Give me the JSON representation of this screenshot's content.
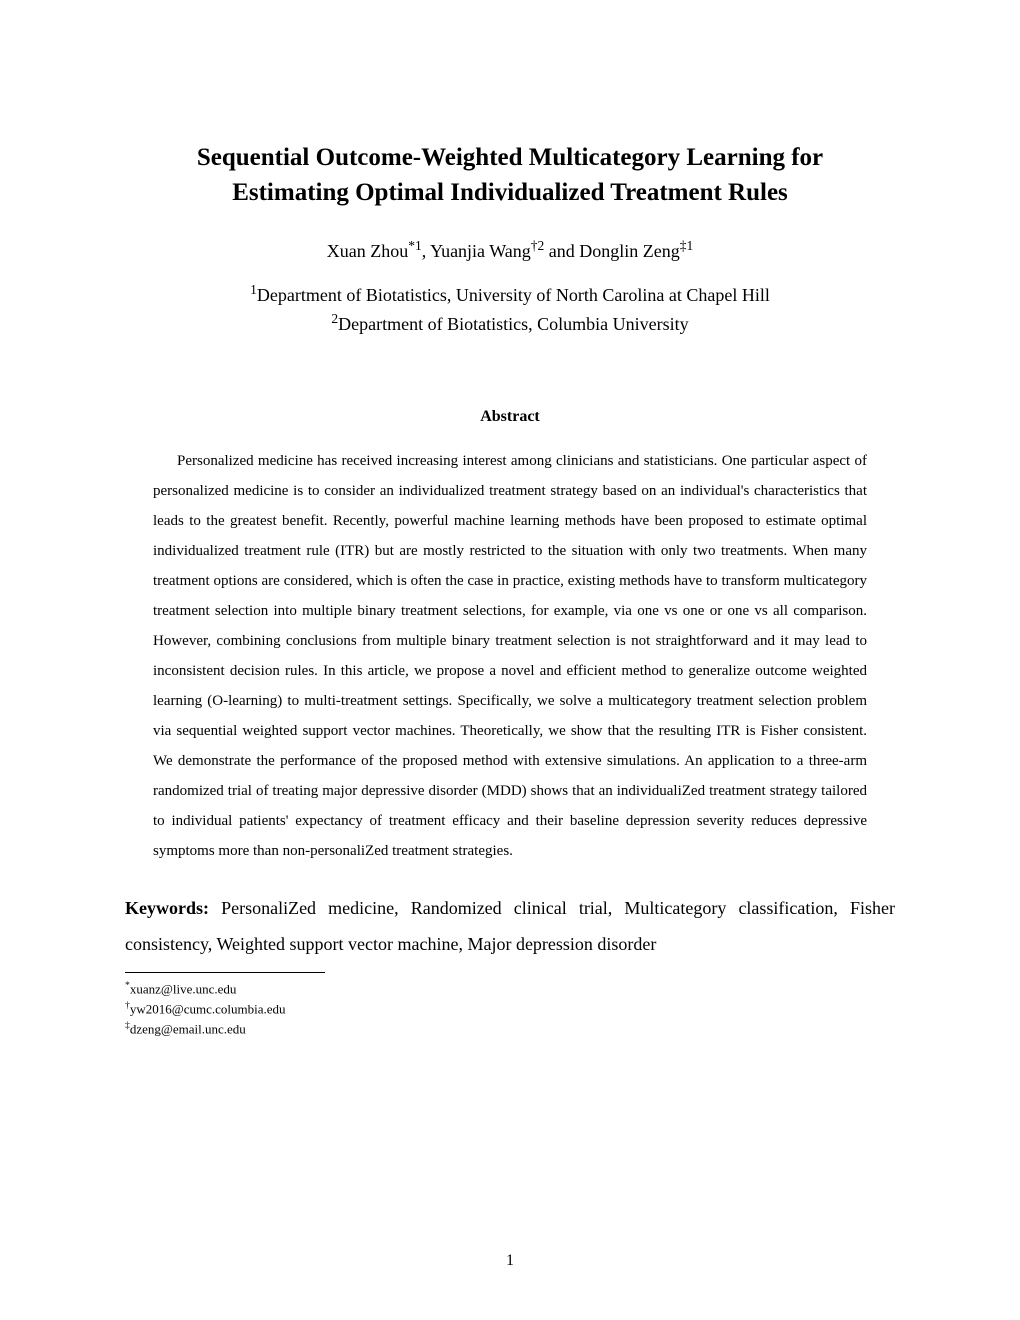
{
  "title": {
    "line1": "Sequential Outcome-Weighted Multicategory Learning for",
    "line2": "Estimating Optimal Individualized Treatment Rules"
  },
  "authors": {
    "a1": {
      "name": "Xuan Zhou",
      "mark": "*1"
    },
    "a2": {
      "name": "Yuanjia Wang",
      "mark": "†2"
    },
    "a3": {
      "name": "Donglin Zeng",
      "mark": "‡1"
    },
    "sep1": ", ",
    "sep2": " and "
  },
  "affiliations": {
    "aff1_num": "1",
    "aff1_text": "Department of Biotatistics, University of North Carolina at Chapel Hill",
    "aff2_num": "2",
    "aff2_text": "Department of Biotatistics, Columbia University"
  },
  "abstract": {
    "heading": "Abstract",
    "body": "Personalized medicine has received increasing interest among clinicians and statisticians. One particular aspect of personalized medicine is to consider an individualized treatment strategy based on an individual's characteristics that leads to the greatest benefit. Recently, powerful machine learning methods have been proposed to estimate optimal individualized treatment rule (ITR) but are mostly restricted to the situation with only two treatments. When many treatment options are considered, which is often the case in practice, existing methods have to transform multicategory treatment selection into multiple binary treatment selections, for example, via one vs one or one vs all comparison. However, combining conclusions from multiple binary treatment selection is not straightforward and it may lead to inconsistent decision rules. In this article, we propose a novel and efficient method to generalize outcome weighted learning (O-learning) to multi-treatment settings. Specifically, we solve a multicategory treatment selection problem via sequential weighted support vector machines. Theoretically, we show that the resulting ITR is Fisher consistent. We demonstrate the performance of the proposed method with extensive simulations. An application to a three-arm randomized trial of treating major depressive disorder (MDD) shows that an individualiZed treatment strategy tailored to individual patients' expectancy of treatment efficacy and their baseline depression severity reduces depressive symptoms more than non-personaliZed treatment strategies."
  },
  "keywords": {
    "label": "Keywords:",
    "text": " PersonaliZed medicine, Randomized clinical trial, Multicategory classification, Fisher consistency, Weighted support vector machine, Major depression disorder"
  },
  "footnotes": {
    "f1": {
      "mark": "*",
      "text": "xuanz@live.unc.edu"
    },
    "f2": {
      "mark": "†",
      "text": "yw2016@cumc.columbia.edu"
    },
    "f3": {
      "mark": "‡",
      "text": "dzeng@email.unc.edu"
    }
  },
  "page_number": "1"
}
